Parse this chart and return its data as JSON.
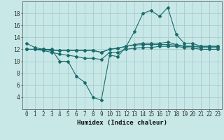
{
  "xlabel": "Humidex (Indice chaleur)",
  "bg_color": "#c8e8e8",
  "grid_color": "#a8cccc",
  "line_color": "#1a6b6b",
  "x_values": [
    0,
    1,
    2,
    3,
    4,
    5,
    6,
    7,
    8,
    9,
    10,
    11,
    12,
    13,
    14,
    15,
    16,
    17,
    18,
    19,
    20,
    21,
    22,
    23
  ],
  "series1": [
    13,
    12.3,
    12,
    12,
    10,
    10,
    7.5,
    6.5,
    4,
    3.5,
    11,
    10.8,
    12.5,
    15,
    18,
    18.5,
    17.5,
    19,
    14.5,
    13,
    13,
    12.5,
    12.5,
    12.5
  ],
  "series2": [
    12,
    12,
    12,
    11.8,
    11.8,
    11.8,
    11.8,
    11.8,
    11.8,
    11.5,
    12,
    12.2,
    12.5,
    12.8,
    13,
    13,
    13,
    13.2,
    12.8,
    12.5,
    12.5,
    12.5,
    12.5,
    12.5
  ],
  "series3": [
    12,
    12,
    12,
    11.8,
    11.8,
    11.8,
    11.8,
    11.8,
    11.8,
    11.5,
    12,
    12.2,
    12.5,
    12.7,
    12.8,
    12.8,
    12.8,
    12.8,
    12.7,
    12.5,
    12.5,
    12.3,
    12.3,
    12.3
  ],
  "series4": [
    12,
    12,
    11.8,
    11.5,
    11.2,
    11.0,
    10.8,
    10.5,
    10.5,
    10.3,
    11.5,
    11.5,
    12.0,
    12.2,
    12.3,
    12.3,
    12.5,
    12.5,
    12.5,
    12.3,
    12.2,
    12.0,
    12.0,
    12.0
  ],
  "ylim": [
    2,
    20
  ],
  "yticks": [
    4,
    6,
    8,
    10,
    12,
    14,
    16,
    18
  ],
  "xticks": [
    0,
    1,
    2,
    3,
    4,
    5,
    6,
    7,
    8,
    9,
    10,
    11,
    12,
    13,
    14,
    15,
    16,
    17,
    18,
    19,
    20,
    21,
    22,
    23
  ],
  "tick_fontsize": 5.5,
  "label_fontsize": 6.5
}
